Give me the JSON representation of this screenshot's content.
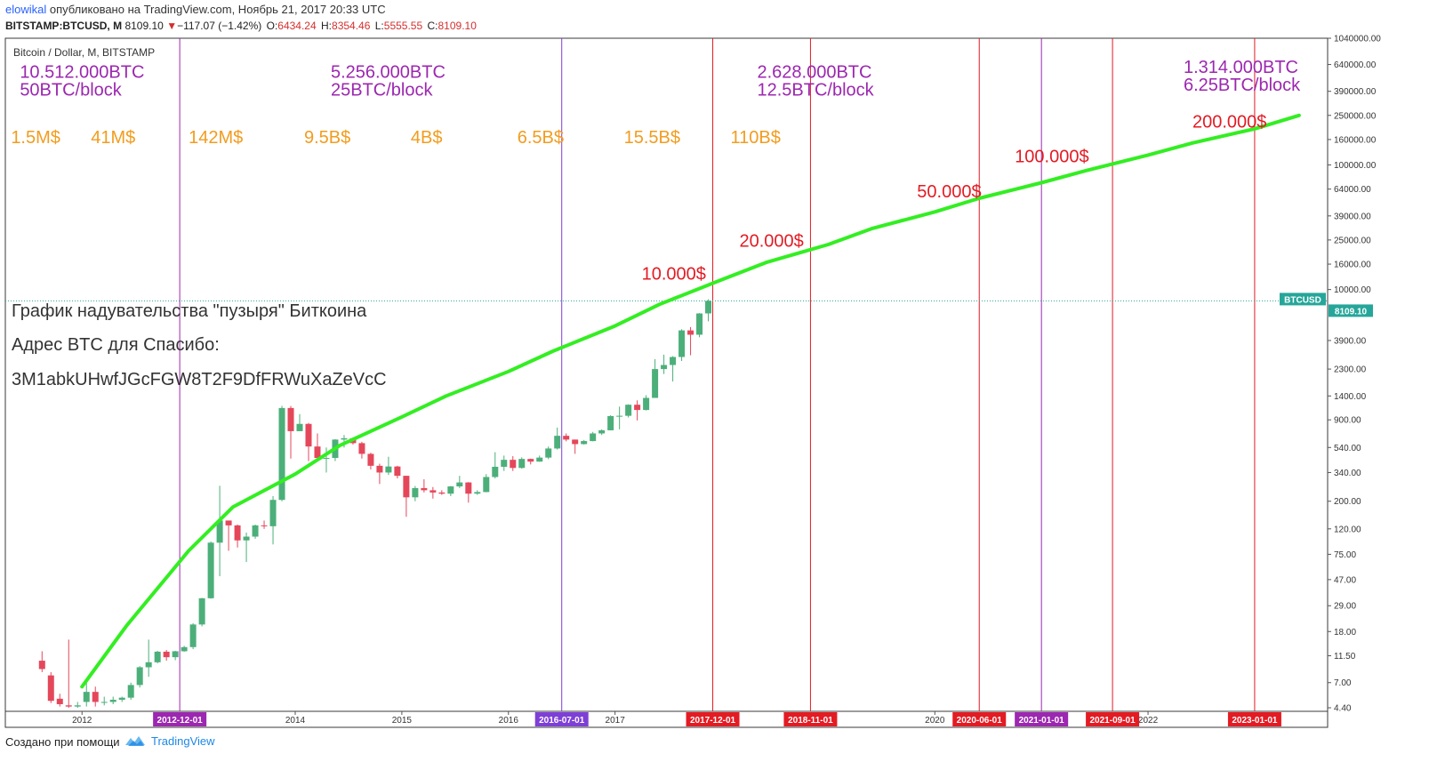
{
  "header": {
    "author": "elowikal",
    "published": "опубликовано на TradingView.com, Ноябрь 21, 2017 20:33 UTC",
    "symbol": "BITSTAMP:BTCUSD, M",
    "price": "8109.10",
    "change": "−117.07 (−1.42%)",
    "open_label": "O:",
    "open": "6434.24",
    "high_label": "H:",
    "high": "8354.46",
    "low_label": "L:",
    "low": "5555.55",
    "close_label": "C:",
    "close": "8109.10"
  },
  "footer": {
    "made_with": "Создано при помощи",
    "brand": "TradingView"
  },
  "chart_data": {
    "type": "candlestick",
    "title": "Bitcoin / Dollar, M, BITSTAMP",
    "yscale": "log",
    "ylim": [
      4.4,
      1040000
    ],
    "xlim": [
      "2011-04-15",
      "2023-07-15"
    ],
    "y_ticks": [
      {
        "v": 1040000,
        "t": "1040000.00"
      },
      {
        "v": 640000,
        "t": "640000.00"
      },
      {
        "v": 390000,
        "t": "390000.00"
      },
      {
        "v": 250000,
        "t": "250000.00"
      },
      {
        "v": 160000,
        "t": "160000.00"
      },
      {
        "v": 100000,
        "t": "100000.00"
      },
      {
        "v": 64000,
        "t": "64000.00"
      },
      {
        "v": 39000,
        "t": "39000.00"
      },
      {
        "v": 25000,
        "t": "25000.00"
      },
      {
        "v": 16000,
        "t": "16000.00"
      },
      {
        "v": 10000,
        "t": "10000.00"
      },
      {
        "v": 3900,
        "t": "3900.00"
      },
      {
        "v": 2300,
        "t": "2300.00"
      },
      {
        "v": 1400,
        "t": "1400.00"
      },
      {
        "v": 900,
        "t": "900.00"
      },
      {
        "v": 540,
        "t": "540.00"
      },
      {
        "v": 340,
        "t": "340.00"
      },
      {
        "v": 200,
        "t": "200.00"
      },
      {
        "v": 120,
        "t": "120.00"
      },
      {
        "v": 75,
        "t": "75.00"
      },
      {
        "v": 47,
        "t": "47.00"
      },
      {
        "v": 29,
        "t": "29.00"
      },
      {
        "v": 18,
        "t": "18.00"
      },
      {
        "v": 11.5,
        "t": "11.50"
      },
      {
        "v": 7,
        "t": "7.00"
      },
      {
        "v": 4.4,
        "t": "4.40"
      }
    ],
    "x_ticks": [
      {
        "d": "2012-01-01",
        "t": "2012"
      },
      {
        "d": "2014-01-01",
        "t": "2014"
      },
      {
        "d": "2015-01-01",
        "t": "2015"
      },
      {
        "d": "2016-01-01",
        "t": "2016"
      },
      {
        "d": "2017-01-01",
        "t": "2017"
      },
      {
        "d": "2020-01-01",
        "t": "2020"
      },
      {
        "d": "2022-01-01",
        "t": "2022"
      }
    ],
    "vlines": [
      {
        "d": "2012-12-01",
        "label": "2012-12-01",
        "color": "#9c27b0"
      },
      {
        "d": "2016-07-01",
        "label": "2016-07-01",
        "color": "#7e3fd6"
      },
      {
        "d": "2017-12-01",
        "label": "2017-12-01",
        "color": "#e31b23"
      },
      {
        "d": "2018-11-01",
        "label": "2018-11-01",
        "color": "#e31b23"
      },
      {
        "d": "2020-06-01",
        "label": "2020-06-01",
        "color": "#e31b23"
      },
      {
        "d": "2021-01-01",
        "label": "2021-01-01",
        "color": "#9c27b0"
      },
      {
        "d": "2021-09-01",
        "label": "2021-09-01",
        "color": "#e31b23"
      },
      {
        "d": "2023-01-01",
        "label": "2023-01-01",
        "color": "#e31b23"
      }
    ],
    "supply_labels": [
      {
        "d": "2011-06-01",
        "v": 500000,
        "line1": "10.512.000BTC",
        "line2": "50BTC/block"
      },
      {
        "d": "2014-05-01",
        "v": 500000,
        "line1": "5.256.000BTC",
        "line2": "25BTC/block"
      },
      {
        "d": "2018-05-01",
        "v": 500000,
        "line1": "2.628.000BTC",
        "line2": "12.5BTC/block"
      },
      {
        "d": "2022-05-01",
        "v": 550000,
        "line1": "1.314.000BTC",
        "line2": "6.25BTC/block"
      }
    ],
    "cap_labels": [
      {
        "d": "2011-05-01",
        "v": 150000,
        "t": "1.5M$"
      },
      {
        "d": "2012-02-01",
        "v": 150000,
        "t": "41M$"
      },
      {
        "d": "2013-01-01",
        "v": 150000,
        "t": "142M$"
      },
      {
        "d": "2014-02-01",
        "v": 150000,
        "t": "9.5B$"
      },
      {
        "d": "2015-02-01",
        "v": 150000,
        "t": "4B$"
      },
      {
        "d": "2016-02-01",
        "v": 150000,
        "t": "6.5B$"
      },
      {
        "d": "2017-02-01",
        "v": 150000,
        "t": "15.5B$"
      },
      {
        "d": "2018-02-01",
        "v": 150000,
        "t": "110B$"
      }
    ],
    "target_labels": [
      {
        "d": "2017-04-01",
        "v": 12000,
        "t": "10.000$"
      },
      {
        "d": "2018-03-01",
        "v": 22000,
        "t": "20.000$"
      },
      {
        "d": "2019-11-01",
        "v": 55000,
        "t": "50.000$"
      },
      {
        "d": "2020-10-01",
        "v": 105000,
        "t": "100.000$"
      },
      {
        "d": "2022-06-01",
        "v": 200000,
        "t": "200.000$"
      }
    ],
    "notes": [
      "График надувательства \"пузыря\" Биткоина",
      "Адрес BTC для Спасибо:",
      "3M1abkUHwfJGcFGW8T2F9DfFRWuXaZeVcC"
    ],
    "price_tag": {
      "label": "BTCUSD",
      "value": "8109.10",
      "v": 8109.1
    },
    "curve": {
      "color": "#33ee22",
      "points": [
        [
          "2012-01-01",
          6.5
        ],
        [
          "2012-06-01",
          20
        ],
        [
          "2013-01-01",
          80
        ],
        [
          "2013-06-01",
          180
        ],
        [
          "2014-01-01",
          330
        ],
        [
          "2014-06-01",
          560
        ],
        [
          "2015-01-01",
          950
        ],
        [
          "2015-06-01",
          1400
        ],
        [
          "2016-01-01",
          2200
        ],
        [
          "2016-06-01",
          3200
        ],
        [
          "2017-01-01",
          5100
        ],
        [
          "2017-06-01",
          7600
        ],
        [
          "2018-01-01",
          12000
        ],
        [
          "2018-06-01",
          16500
        ],
        [
          "2019-01-01",
          23000
        ],
        [
          "2019-06-01",
          31000
        ],
        [
          "2020-01-01",
          42000
        ],
        [
          "2020-06-01",
          54000
        ],
        [
          "2021-01-01",
          72000
        ],
        [
          "2021-06-01",
          90000
        ],
        [
          "2022-01-01",
          120000
        ],
        [
          "2022-06-01",
          150000
        ],
        [
          "2023-01-01",
          195000
        ],
        [
          "2023-06-01",
          250000
        ]
      ]
    },
    "candles": [
      [
        "2011-08",
        10.5,
        12.5,
        8.5,
        9
      ],
      [
        "2011-09",
        8,
        8.5,
        4.8,
        5
      ],
      [
        "2011-10",
        5.2,
        5.7,
        4.5,
        4.7
      ],
      [
        "2011-11",
        4.6,
        15.5,
        4.4,
        4.5
      ],
      [
        "2011-12",
        4.5,
        4.9,
        4.4,
        4.6
      ],
      [
        "2012-01",
        4.9,
        7.2,
        4.5,
        5.9
      ],
      [
        "2012-02",
        5.9,
        6.5,
        4.5,
        4.9
      ],
      [
        "2012-03",
        4.9,
        5.4,
        4.6,
        4.9
      ],
      [
        "2012-04",
        4.9,
        5.4,
        4.7,
        5.1
      ],
      [
        "2012-05",
        5.1,
        5.4,
        4.9,
        5.3
      ],
      [
        "2012-06",
        5.3,
        7.0,
        5.1,
        6.7
      ],
      [
        "2012-07",
        6.7,
        9.5,
        6.4,
        9.3
      ],
      [
        "2012-08",
        9.3,
        15.5,
        7.8,
        10.2
      ],
      [
        "2012-09",
        10.2,
        12.6,
        10.0,
        12.4
      ],
      [
        "2012-10",
        12.4,
        12.8,
        10.5,
        11.2
      ],
      [
        "2012-11",
        11.2,
        12.6,
        10.6,
        12.5
      ],
      [
        "2012-12",
        12.5,
        13.8,
        12.4,
        13.5
      ],
      [
        "2013-01",
        13.5,
        21,
        13,
        20.5
      ],
      [
        "2013-02",
        20.5,
        33.5,
        19.8,
        33.3
      ],
      [
        "2013-03",
        33.3,
        95,
        33,
        93
      ],
      [
        "2013-04",
        93,
        266,
        50,
        140
      ],
      [
        "2013-05",
        140,
        140,
        80,
        128
      ],
      [
        "2013-06",
        128,
        130,
        85,
        97
      ],
      [
        "2013-07",
        97,
        112,
        65,
        104
      ],
      [
        "2013-08",
        104,
        130,
        100,
        128
      ],
      [
        "2013-09",
        128,
        140,
        120,
        126
      ],
      [
        "2013-10",
        126,
        220,
        90,
        205
      ],
      [
        "2013-11",
        205,
        1165,
        200,
        1120
      ],
      [
        "2013-12",
        1120,
        1163,
        440,
        730
      ],
      [
        "2014-01",
        730,
        1000,
        730,
        835
      ],
      [
        "2014-02",
        835,
        850,
        420,
        550
      ],
      [
        "2014-03",
        550,
        700,
        440,
        445
      ],
      [
        "2014-04",
        445,
        540,
        340,
        445
      ],
      [
        "2014-05",
        445,
        630,
        420,
        625
      ],
      [
        "2014-06",
        625,
        680,
        540,
        640
      ],
      [
        "2014-07",
        640,
        650,
        570,
        585
      ],
      [
        "2014-08",
        585,
        600,
        440,
        480
      ],
      [
        "2014-09",
        480,
        490,
        360,
        385
      ],
      [
        "2014-10",
        385,
        400,
        275,
        340
      ],
      [
        "2014-11",
        340,
        455,
        325,
        380
      ],
      [
        "2014-12",
        380,
        385,
        305,
        320
      ],
      [
        "2015-01",
        320,
        320,
        150,
        215
      ],
      [
        "2015-02",
        215,
        265,
        200,
        255
      ],
      [
        "2015-03",
        255,
        300,
        235,
        245
      ],
      [
        "2015-04",
        245,
        260,
        210,
        235
      ],
      [
        "2015-05",
        235,
        245,
        225,
        230
      ],
      [
        "2015-06",
        230,
        265,
        220,
        263
      ],
      [
        "2015-07",
        263,
        320,
        255,
        283
      ],
      [
        "2015-08",
        283,
        285,
        195,
        230
      ],
      [
        "2015-09",
        230,
        245,
        225,
        237
      ],
      [
        "2015-10",
        237,
        330,
        236,
        313
      ],
      [
        "2015-11",
        313,
        495,
        305,
        378
      ],
      [
        "2015-12",
        378,
        465,
        350,
        430
      ],
      [
        "2016-01",
        430,
        460,
        350,
        370
      ],
      [
        "2016-02",
        370,
        450,
        365,
        437
      ],
      [
        "2016-03",
        437,
        440,
        395,
        416
      ],
      [
        "2016-04",
        416,
        465,
        415,
        448
      ],
      [
        "2016-05",
        448,
        550,
        435,
        530
      ],
      [
        "2016-06",
        530,
        780,
        520,
        670
      ],
      [
        "2016-07",
        670,
        700,
        605,
        625
      ],
      [
        "2016-08",
        625,
        625,
        480,
        575
      ],
      [
        "2016-09",
        575,
        620,
        570,
        608
      ],
      [
        "2016-10",
        608,
        720,
        605,
        700
      ],
      [
        "2016-11",
        700,
        755,
        680,
        742
      ],
      [
        "2016-12",
        742,
        980,
        740,
        965
      ],
      [
        "2017-01",
        965,
        1150,
        755,
        970
      ],
      [
        "2017-02",
        970,
        1200,
        940,
        1190
      ],
      [
        "2017-03",
        1190,
        1290,
        890,
        1080
      ],
      [
        "2017-04",
        1080,
        1420,
        1070,
        1350
      ],
      [
        "2017-05",
        1350,
        2760,
        1350,
        2300
      ],
      [
        "2017-06",
        2300,
        3000,
        2100,
        2480
      ],
      [
        "2017-07",
        2480,
        2920,
        1830,
        2875
      ],
      [
        "2017-08",
        2875,
        4800,
        2670,
        4700
      ],
      [
        "2017-09",
        4700,
        5000,
        2970,
        4340
      ],
      [
        "2017-10",
        4340,
        6470,
        4140,
        6430
      ],
      [
        "2017-11",
        6434.24,
        8354.46,
        5555.55,
        8109.1
      ]
    ]
  }
}
